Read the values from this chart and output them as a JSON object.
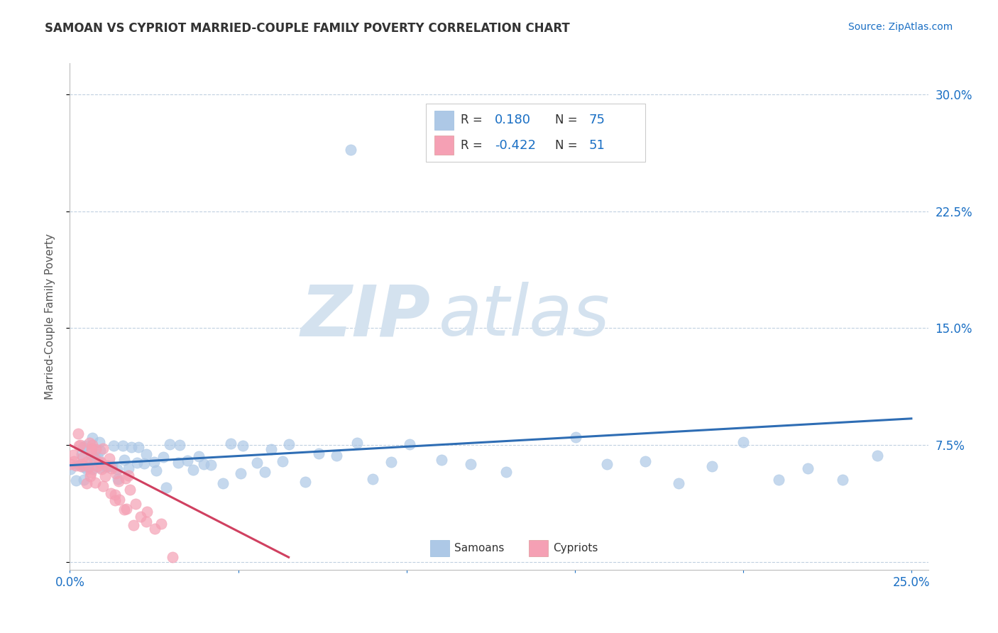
{
  "title": "SAMOAN VS CYPRIOT MARRIED-COUPLE FAMILY POVERTY CORRELATION CHART",
  "source_text": "Source: ZipAtlas.com",
  "ylabel": "Married-Couple Family Poverty",
  "xlim": [
    0.0,
    0.255
  ],
  "ylim": [
    -0.005,
    0.32
  ],
  "xticks": [
    0.0,
    0.05,
    0.1,
    0.15,
    0.2,
    0.25
  ],
  "xtick_labels": [
    "0.0%",
    "",
    "",
    "",
    "",
    "25.0%"
  ],
  "yticks": [
    0.0,
    0.075,
    0.15,
    0.225,
    0.3
  ],
  "ytick_labels": [
    "",
    "7.5%",
    "15.0%",
    "22.5%",
    "30.0%"
  ],
  "samoan_R": 0.18,
  "samoan_N": 75,
  "cypriot_R": -0.422,
  "cypriot_N": 51,
  "samoan_color": "#adc8e6",
  "cypriot_color": "#f5a0b4",
  "samoan_line_color": "#2e6db4",
  "cypriot_line_color": "#d04060",
  "legend_color": "#1a6fc4",
  "watermark_ZIP": "ZIP",
  "watermark_atlas": "atlas",
  "watermark_color": "#d4e2ef",
  "background_color": "#ffffff",
  "grid_color": "#c0d0e0",
  "title_color": "#333333",
  "ax_spine_color": "#bbbbbb",
  "samoan_line_x": [
    0.0,
    0.25
  ],
  "samoan_line_y": [
    0.062,
    0.092
  ],
  "cypriot_line_x": [
    0.0,
    0.065
  ],
  "cypriot_line_y": [
    0.075,
    0.003
  ],
  "samoan_x": [
    0.001,
    0.002,
    0.002,
    0.003,
    0.003,
    0.004,
    0.004,
    0.005,
    0.005,
    0.005,
    0.006,
    0.006,
    0.007,
    0.007,
    0.008,
    0.008,
    0.009,
    0.009,
    0.01,
    0.01,
    0.011,
    0.012,
    0.013,
    0.014,
    0.015,
    0.015,
    0.016,
    0.017,
    0.018,
    0.02,
    0.021,
    0.022,
    0.023,
    0.025,
    0.026,
    0.027,
    0.028,
    0.03,
    0.032,
    0.033,
    0.035,
    0.037,
    0.038,
    0.04,
    0.042,
    0.045,
    0.048,
    0.05,
    0.052,
    0.055,
    0.058,
    0.06,
    0.063,
    0.065,
    0.07,
    0.075,
    0.08,
    0.085,
    0.09,
    0.095,
    0.1,
    0.11,
    0.12,
    0.13,
    0.15,
    0.16,
    0.17,
    0.18,
    0.19,
    0.2,
    0.21,
    0.22,
    0.23,
    0.24,
    0.083
  ],
  "samoan_y": [
    0.06,
    0.068,
    0.055,
    0.072,
    0.065,
    0.058,
    0.075,
    0.062,
    0.07,
    0.055,
    0.068,
    0.06,
    0.075,
    0.058,
    0.065,
    0.072,
    0.06,
    0.068,
    0.055,
    0.075,
    0.062,
    0.07,
    0.058,
    0.065,
    0.072,
    0.06,
    0.068,
    0.055,
    0.075,
    0.062,
    0.07,
    0.058,
    0.065,
    0.072,
    0.06,
    0.068,
    0.055,
    0.075,
    0.062,
    0.07,
    0.058,
    0.065,
    0.072,
    0.06,
    0.068,
    0.055,
    0.075,
    0.062,
    0.07,
    0.058,
    0.065,
    0.072,
    0.06,
    0.068,
    0.055,
    0.075,
    0.062,
    0.07,
    0.058,
    0.065,
    0.072,
    0.06,
    0.068,
    0.055,
    0.075,
    0.062,
    0.07,
    0.058,
    0.065,
    0.072,
    0.06,
    0.068,
    0.055,
    0.075,
    0.27
  ],
  "cypriot_x": [
    0.001,
    0.001,
    0.002,
    0.002,
    0.002,
    0.003,
    0.003,
    0.003,
    0.004,
    0.004,
    0.004,
    0.005,
    0.005,
    0.005,
    0.006,
    0.006,
    0.006,
    0.007,
    0.007,
    0.007,
    0.008,
    0.008,
    0.008,
    0.009,
    0.009,
    0.01,
    0.01,
    0.01,
    0.011,
    0.011,
    0.012,
    0.012,
    0.013,
    0.013,
    0.014,
    0.014,
    0.015,
    0.015,
    0.016,
    0.016,
    0.017,
    0.018,
    0.018,
    0.019,
    0.02,
    0.021,
    0.022,
    0.023,
    0.025,
    0.027,
    0.03
  ],
  "cypriot_y": [
    0.07,
    0.065,
    0.075,
    0.06,
    0.068,
    0.072,
    0.058,
    0.065,
    0.07,
    0.055,
    0.068,
    0.062,
    0.075,
    0.058,
    0.065,
    0.07,
    0.055,
    0.068,
    0.06,
    0.075,
    0.055,
    0.065,
    0.07,
    0.055,
    0.06,
    0.065,
    0.055,
    0.07,
    0.05,
    0.06,
    0.048,
    0.062,
    0.045,
    0.055,
    0.042,
    0.06,
    0.04,
    0.05,
    0.038,
    0.048,
    0.035,
    0.04,
    0.05,
    0.03,
    0.035,
    0.032,
    0.028,
    0.025,
    0.022,
    0.018,
    0.01
  ]
}
